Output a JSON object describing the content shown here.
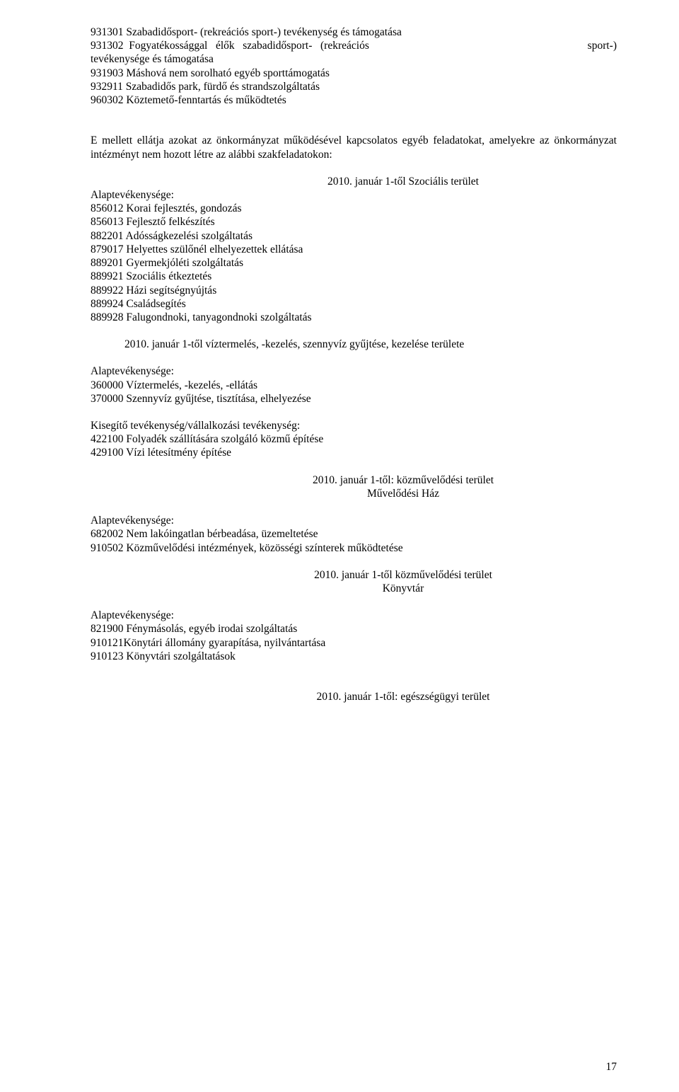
{
  "section1_lines": [
    {
      "type": "just",
      "left": "931301 Szabadidősport- (rekreációs sport-) tevékenység és támogatása",
      "right": ""
    },
    {
      "type": "spread",
      "left": "931302  Fogyatékossággal   élők   szabadidősport-   (rekreációs",
      "right": "sport-)"
    },
    {
      "type": "just",
      "left": "tevékenysége és támogatása",
      "right": ""
    },
    {
      "type": "just",
      "left": "931903 Máshová nem sorolható egyéb sporttámogatás",
      "right": ""
    },
    {
      "type": "just",
      "left": "932911 Szabadidős park, fürdő és strandszolgáltatás",
      "right": ""
    },
    {
      "type": "just",
      "left": "960302 Köztemető-fenntartás és működtetés",
      "right": ""
    }
  ],
  "paragraph1": "E mellett ellátja azokat az önkormányzat működésével kapcsolatos egyéb feladatokat, amelyekre az önkormányzat intézményt nem hozott létre az alábbi szakfeladatokon:",
  "heading1": "2010. január 1-től Szociális terület",
  "list1": [
    "Alaptevékenysége:",
    "856012 Korai fejlesztés, gondozás",
    "856013 Fejlesztő felkészítés",
    "882201 Adósságkezelési szolgáltatás",
    "879017 Helyettes szülőnél elhelyezettek ellátása",
    "889201 Gyermekjóléti szolgáltatás",
    "889921 Szociális étkeztetés",
    "889922 Házi segítségnyújtás",
    "889924 Családsegítés",
    "889928 Falugondnoki, tanyagondnoki szolgáltatás"
  ],
  "heading2": "2010. január 1-től víztermelés, -kezelés, szennyvíz gyűjtése, kezelése területe",
  "list2": [
    " Alaptevékenysége:",
    "360000 Víztermelés, -kezelés, -ellátás",
    "370000 Szennyvíz gyűjtése, tisztítása, elhelyezése"
  ],
  "list3": [
    "Kisegítő tevékenység/vállalkozási tevékenység:",
    "422100 Folyadék szállítására szolgáló közmű építése",
    "429100 Vízi létesítmény építése"
  ],
  "heading3a": "2010. január 1-től:  közművelődési terület",
  "heading3b": "Művelődési Ház",
  "list4": [
    "Alaptevékenysége:",
    "682002 Nem lakóingatlan bérbeadása, üzemeltetése",
    "910502 Közművelődési intézmények, közösségi színterek működtetése"
  ],
  "heading4a": "2010. január 1-től közművelődési terület",
  "heading4b": "Könyvtár",
  "list5": [
    "Alaptevékenysége:",
    "821900 Fénymásolás, egyéb irodai szolgáltatás",
    "910121Könytári állomány gyarapítása, nyilvántartása",
    "910123 Könyvtári szolgáltatások"
  ],
  "heading5": "2010. január 1-től: egészségügyi terület",
  "pagenum": "17"
}
